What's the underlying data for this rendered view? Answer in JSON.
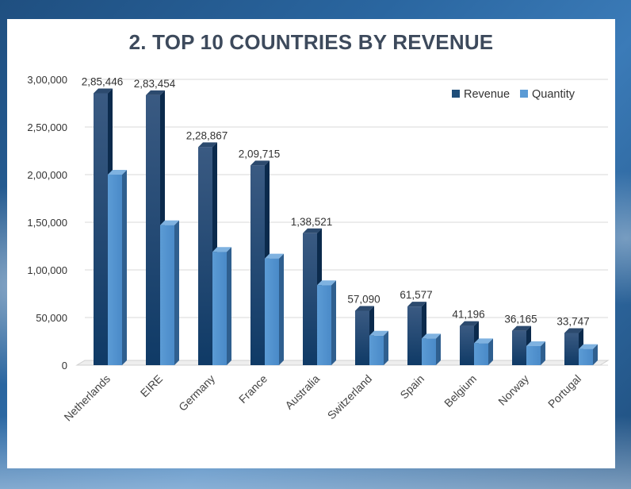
{
  "chart_data": {
    "type": "bar",
    "title": "2. TOP 10 COUNTRIES BY REVENUE",
    "xlabel": "",
    "ylabel": "",
    "ylim": [
      0,
      300000
    ],
    "yticks": [
      0,
      50000,
      100000,
      150000,
      200000,
      250000,
      300000
    ],
    "ytick_labels": [
      "0",
      "50,000",
      "1,00,000",
      "1,50,000",
      "2,00,000",
      "2,50,000",
      "3,00,000"
    ],
    "grid": true,
    "legend": "top-right",
    "categories": [
      "Netherlands",
      "EIRE",
      "Germany",
      "France",
      "Australia",
      "Switzerland",
      "Spain",
      "Belgium",
      "Norway",
      "Portugal"
    ],
    "series": [
      {
        "name": "Revenue",
        "color": "#1f4e79",
        "values": [
          285446,
          283454,
          228867,
          209715,
          138521,
          57090,
          61577,
          41196,
          36165,
          33747
        ],
        "data_labels": [
          "2,85,446",
          "2,83,454",
          "2,28,867",
          "2,09,715",
          "1,38,521",
          "57,090",
          "61,577",
          "41,196",
          "36,165",
          "33,747"
        ]
      },
      {
        "name": "Quantity",
        "color": "#5b9bd5",
        "values": [
          200000,
          147000,
          119000,
          112000,
          84000,
          31000,
          28000,
          23000,
          20000,
          17000
        ]
      }
    ]
  }
}
